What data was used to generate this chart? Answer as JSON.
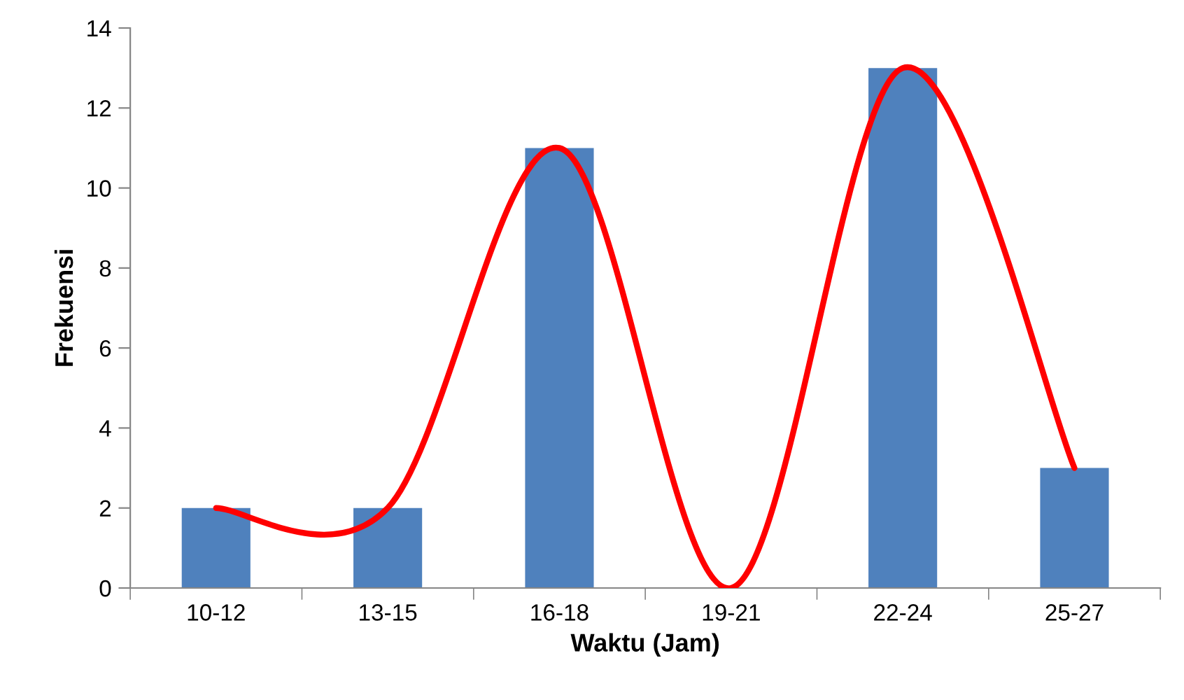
{
  "chart_data": {
    "type": "bar",
    "xlabel": "Waktu (Jam)",
    "ylabel": "Frekuensi",
    "categories": [
      "10-12",
      "13-15",
      "16-18",
      "19-21",
      "22-24",
      "25-27"
    ],
    "series": [
      {
        "color": "#4f81bd",
        "values": [
          2,
          2,
          11,
          0,
          13,
          3
        ]
      },
      {
        "type": "line",
        "color": "#ff0000",
        "values": [
          2,
          2,
          11,
          0,
          13,
          3
        ],
        "marker": "none"
      }
    ],
    "ylim": [
      0,
      14
    ],
    "yticks": [
      0,
      2,
      4,
      6,
      8,
      10,
      12,
      14
    ],
    "grid": false,
    "legend": false
  }
}
